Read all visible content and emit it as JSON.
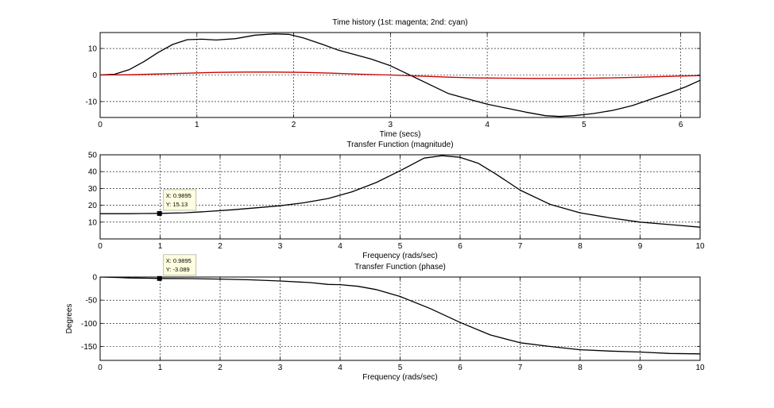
{
  "chart_data": [
    {
      "type": "line",
      "title": "Time history (1st: magenta; 2nd: cyan)",
      "xlabel": "Time (secs)",
      "ylabel": "",
      "xlim": [
        0,
        6.2
      ],
      "ylim": [
        -16,
        16
      ],
      "xticks": [
        0,
        1,
        2,
        3,
        4,
        5,
        6
      ],
      "yticks": [
        -10,
        0,
        10
      ],
      "grid": true,
      "series": [
        {
          "color": "#000000",
          "x": [
            0,
            0.15,
            0.3,
            0.45,
            0.6,
            0.75,
            0.9,
            1.05,
            1.2,
            1.4,
            1.6,
            1.8,
            1.95,
            2.1,
            2.3,
            2.45,
            2.6,
            2.8,
            3.0,
            3.2,
            3.4,
            3.6,
            3.8,
            4.0,
            4.2,
            4.4,
            4.6,
            4.75,
            4.9,
            5.1,
            5.3,
            5.5,
            5.7,
            5.9,
            6.05,
            6.2
          ],
          "y": [
            0,
            0.3,
            2,
            5,
            8.5,
            11.5,
            13.3,
            13.5,
            13.2,
            13.7,
            15,
            15.5,
            15.3,
            14,
            11.5,
            9.5,
            8,
            6,
            3.5,
            0,
            -3.5,
            -7,
            -9,
            -11,
            -12.5,
            -14,
            -15.3,
            -15.6,
            -15.3,
            -14.5,
            -13.3,
            -11.5,
            -9,
            -6.5,
            -4.5,
            -2
          ]
        },
        {
          "color": "#cc0000",
          "x": [
            0,
            0.3,
            0.6,
            0.9,
            1.2,
            1.5,
            1.8,
            2.1,
            2.4,
            2.7,
            3.0,
            3.3,
            3.6,
            3.9,
            4.2,
            4.5,
            4.8,
            5.1,
            5.4,
            5.7,
            6.0,
            6.2
          ],
          "y": [
            0,
            0.1,
            0.4,
            0.7,
            1.0,
            1.1,
            1.1,
            1.0,
            0.7,
            0.3,
            0,
            -0.4,
            -0.8,
            -1.1,
            -1.2,
            -1.3,
            -1.3,
            -1.2,
            -1.0,
            -0.7,
            -0.4,
            -0.2
          ]
        }
      ]
    },
    {
      "type": "line",
      "title": "Transfer Function (magnitude)",
      "xlabel": "Frequency (rads/sec)",
      "ylabel": "",
      "xlim": [
        0,
        10
      ],
      "ylim": [
        0,
        50
      ],
      "xticks": [
        0,
        1,
        2,
        3,
        4,
        5,
        6,
        7,
        8,
        9,
        10
      ],
      "yticks": [
        10,
        20,
        30,
        40,
        50
      ],
      "grid": true,
      "series": [
        {
          "color": "#000000",
          "x": [
            0,
            0.5,
            0.7,
            1.0,
            1.4,
            1.8,
            2.2,
            2.6,
            3.0,
            3.4,
            3.8,
            4.2,
            4.6,
            5.0,
            5.4,
            5.7,
            6.0,
            6.3,
            6.6,
            7.0,
            7.5,
            8.0,
            8.5,
            9.0,
            9.5,
            10.0
          ],
          "y": [
            15,
            15,
            15.1,
            15.2,
            15.5,
            16.3,
            17.3,
            18.5,
            19.7,
            21.5,
            24,
            28,
            33.5,
            40.5,
            48,
            49.5,
            48.5,
            45,
            38.5,
            29,
            20.5,
            15.5,
            12.5,
            10,
            8.5,
            7
          ]
        }
      ],
      "annotation": {
        "x_label": "X: 0.9895",
        "y_label": "Y: 15.13",
        "x": 0.9895,
        "y": 15.13
      }
    },
    {
      "type": "line",
      "title": "Transfer Function (phase)",
      "xlabel": "Frequency (rads/sec)",
      "ylabel": "Degrees",
      "xlim": [
        0,
        10
      ],
      "ylim": [
        -180,
        0
      ],
      "xticks": [
        0,
        1,
        2,
        3,
        4,
        5,
        6,
        7,
        8,
        9,
        10
      ],
      "yticks": [
        -150,
        -100,
        -50,
        0
      ],
      "grid": true,
      "series": [
        {
          "color": "#000000",
          "x": [
            0,
            0.3,
            0.5,
            0.8,
            1.0,
            1.5,
            2.0,
            2.5,
            3.0,
            3.5,
            3.8,
            4.0,
            4.3,
            4.6,
            5.0,
            5.5,
            6.0,
            6.5,
            7.0,
            7.5,
            8.0,
            8.5,
            9.0,
            9.5,
            10.0
          ],
          "y": [
            0,
            -1,
            -2,
            -2.5,
            -3.1,
            -3.5,
            -4.5,
            -6,
            -8.5,
            -12,
            -16,
            -16.5,
            -20,
            -27,
            -42,
            -68,
            -98,
            -125,
            -142,
            -150,
            -157,
            -160,
            -162,
            -165,
            -166
          ]
        }
      ],
      "annotation": {
        "x_label": "X: 0.9895",
        "y_label": "Y: -3.089",
        "x": 0.9895,
        "y": -3.089
      }
    }
  ]
}
